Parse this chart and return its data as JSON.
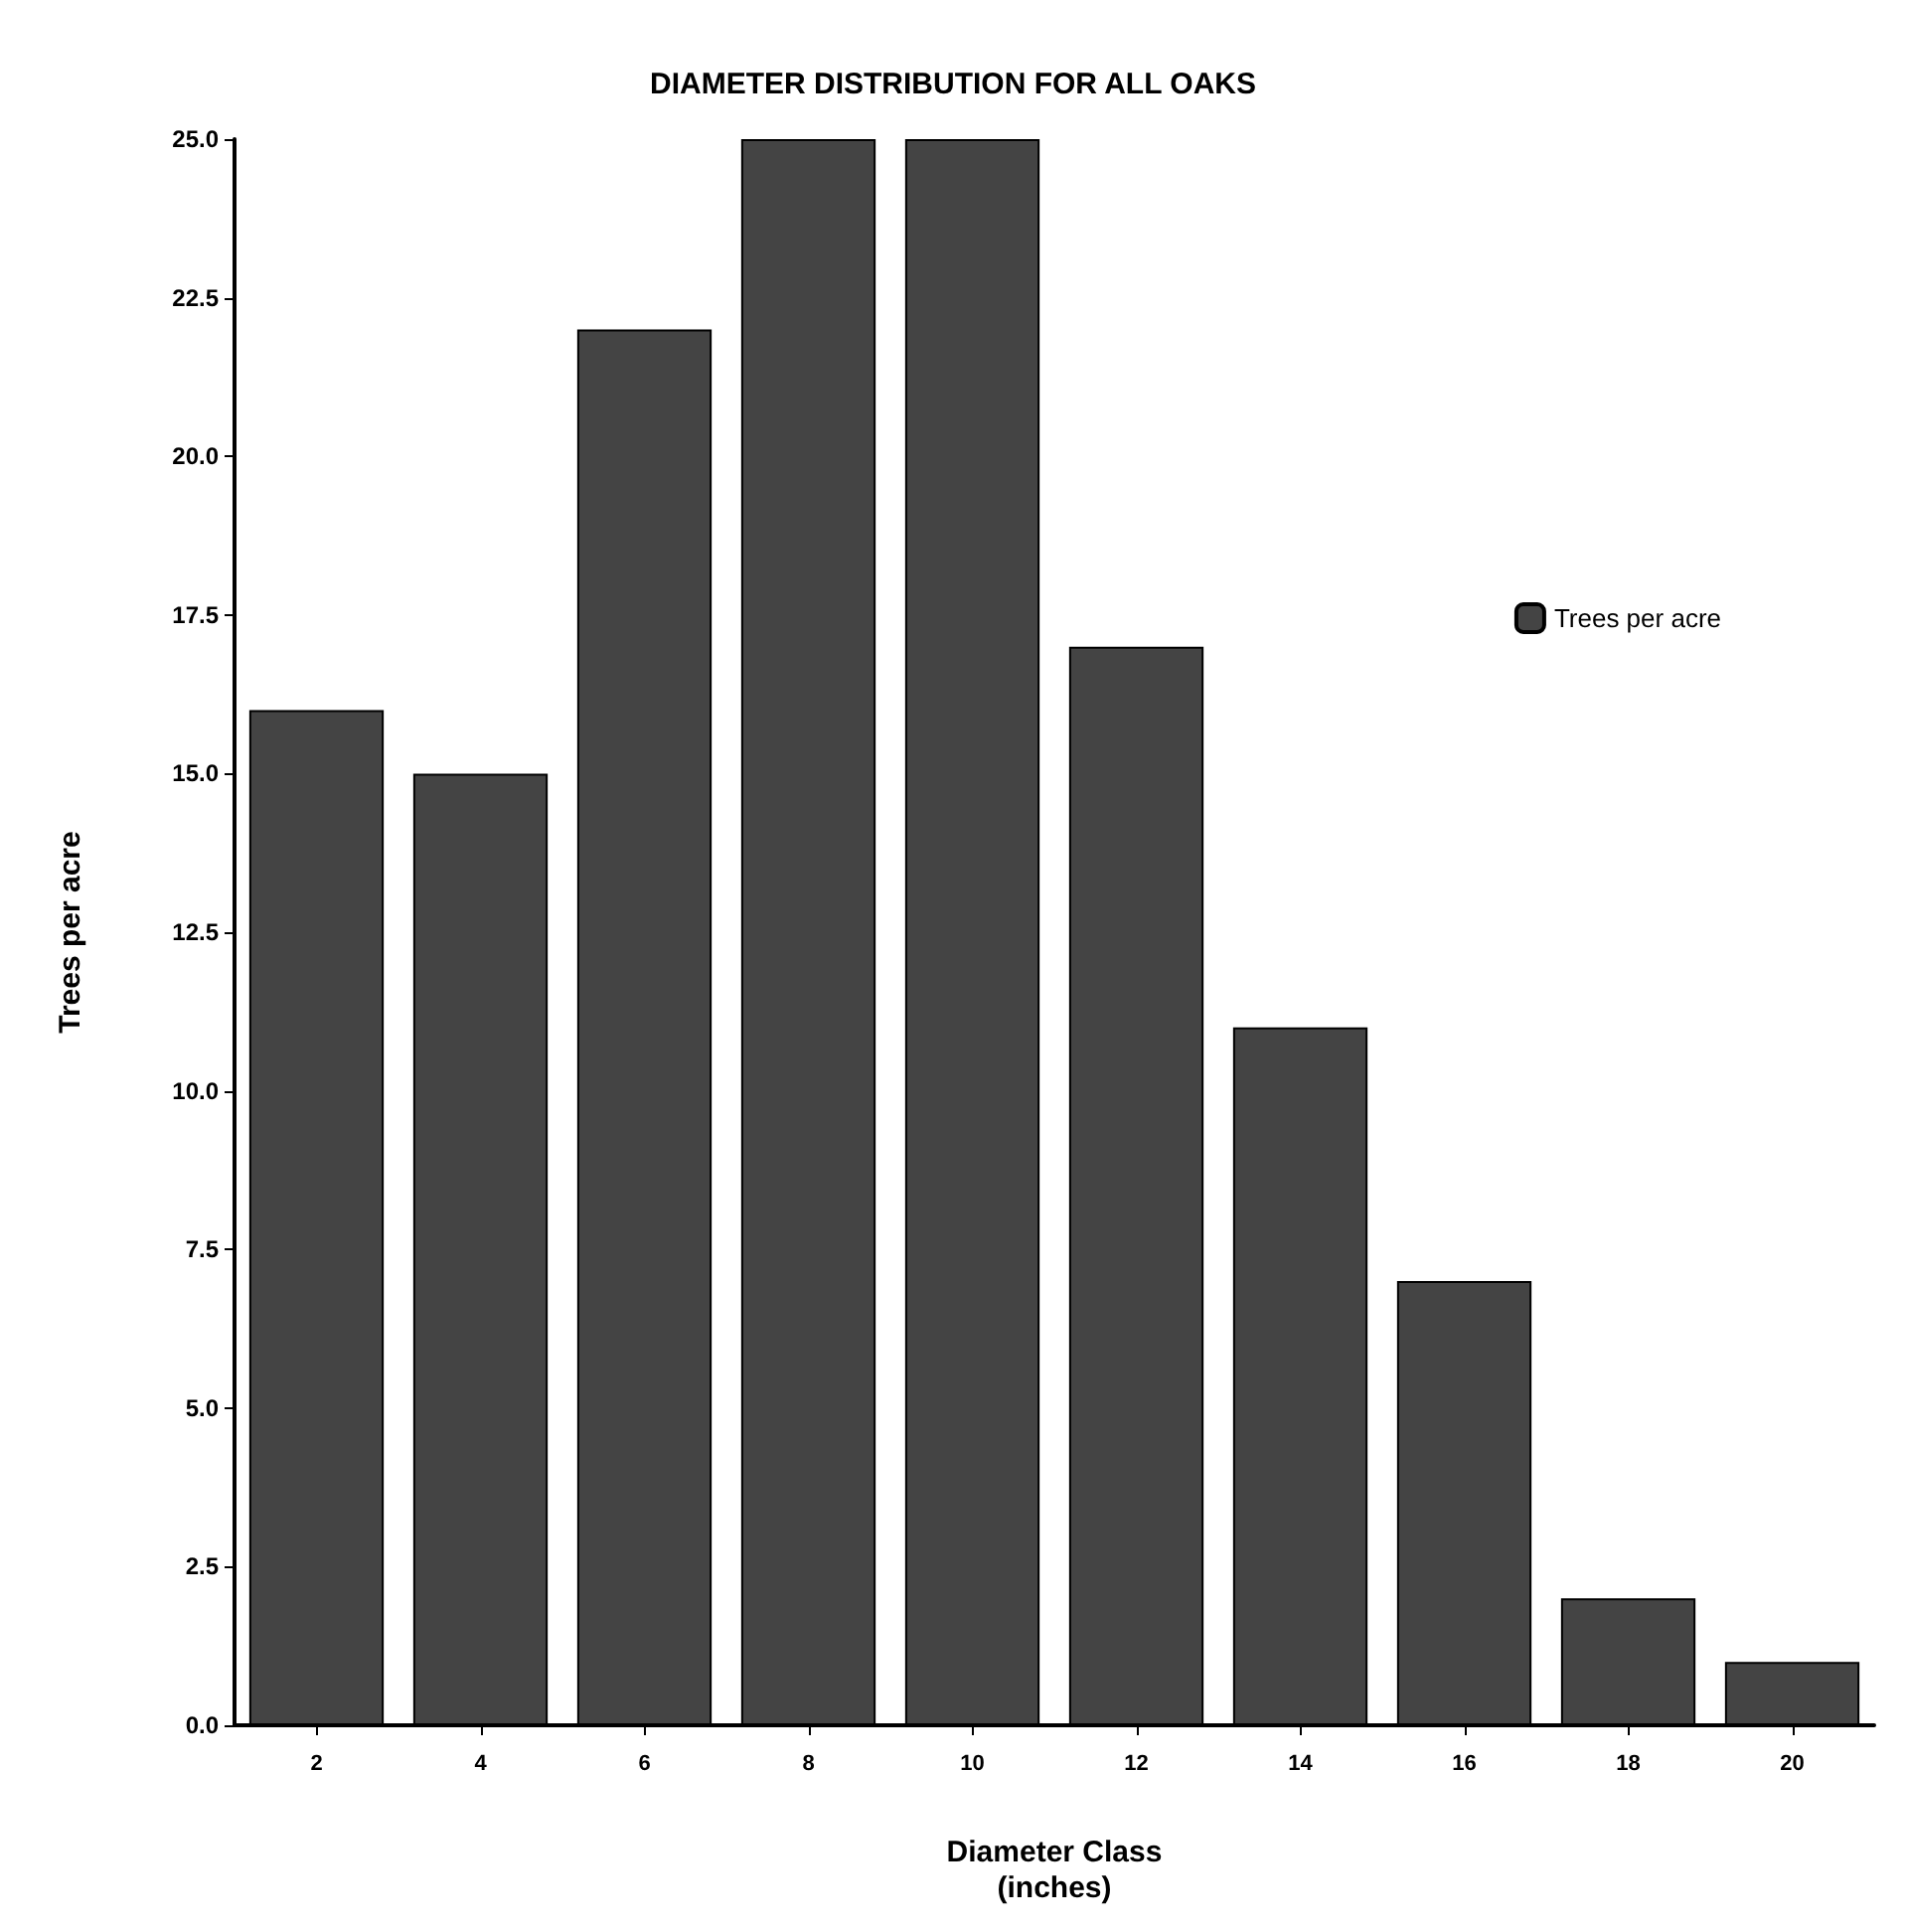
{
  "chart_data": {
    "type": "bar",
    "title": "DIAMETER DISTRIBUTION FOR ALL OAKS",
    "xlabel": "Diameter Class\n(inches)",
    "ylabel": "Trees per acre",
    "categories": [
      "2",
      "4",
      "6",
      "8",
      "10",
      "12",
      "14",
      "16",
      "18",
      "20"
    ],
    "series": [
      {
        "name": "Trees per acre",
        "color": "#444444",
        "values": [
          16,
          15,
          22,
          25,
          25,
          17,
          11,
          7,
          2,
          1
        ]
      }
    ],
    "ylim": [
      0,
      25
    ],
    "yticks": [
      {
        "value": 0,
        "label": "0.0"
      },
      {
        "value": 2.5,
        "label": "2.5"
      },
      {
        "value": 5,
        "label": "5.0"
      },
      {
        "value": 7.5,
        "label": "7.5"
      },
      {
        "value": 10,
        "label": "10.0"
      },
      {
        "value": 12.5,
        "label": "12.5"
      },
      {
        "value": 15,
        "label": "15.0"
      },
      {
        "value": 17.5,
        "label": "17.5"
      },
      {
        "value": 20,
        "label": "20.0"
      },
      {
        "value": 22.5,
        "label": "22.5"
      },
      {
        "value": 25,
        "label": "25.0"
      }
    ],
    "grid": false,
    "legend": "top right"
  }
}
